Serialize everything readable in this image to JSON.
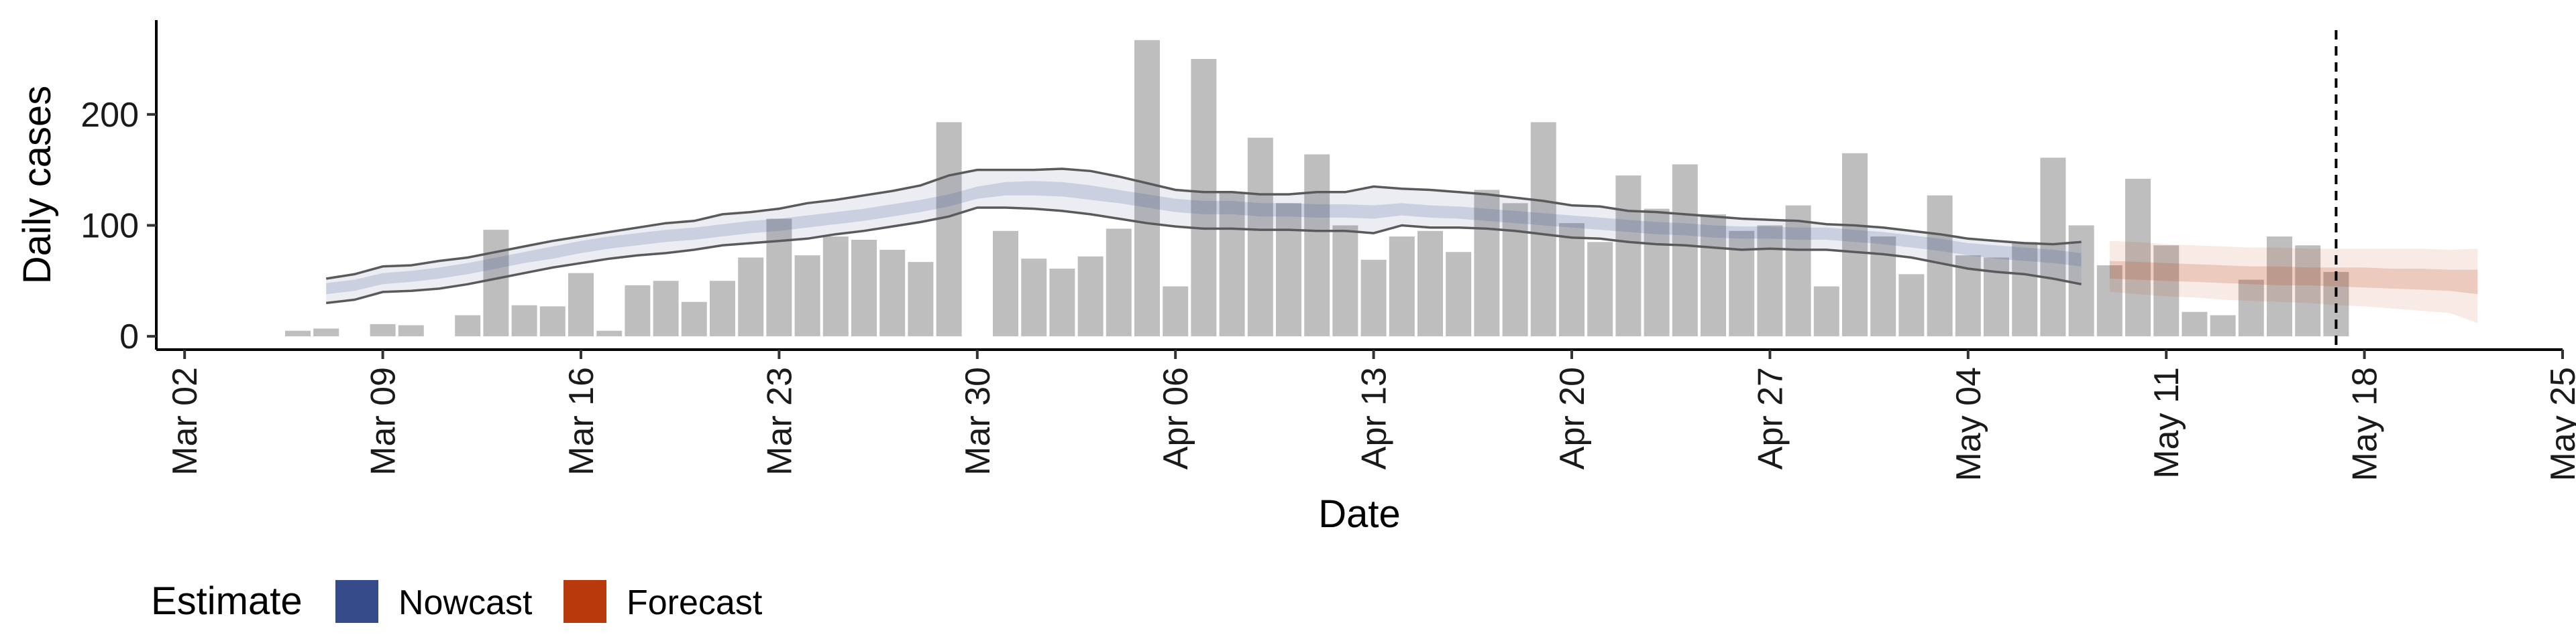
{
  "chart_data": {
    "type": "bar",
    "title": "",
    "xlabel": "Date",
    "ylabel": "Daily cases",
    "x_range": [
      "2020-03-01",
      "2020-05-25"
    ],
    "ylim": [
      -12,
      285
    ],
    "x_ticks": [
      {
        "date": "2020-03-02",
        "label": "Mar 02"
      },
      {
        "date": "2020-03-09",
        "label": "Mar 09"
      },
      {
        "date": "2020-03-16",
        "label": "Mar 16"
      },
      {
        "date": "2020-03-23",
        "label": "Mar 23"
      },
      {
        "date": "2020-03-30",
        "label": "Mar 30"
      },
      {
        "date": "2020-04-06",
        "label": "Apr 06"
      },
      {
        "date": "2020-04-13",
        "label": "Apr 13"
      },
      {
        "date": "2020-04-20",
        "label": "Apr 20"
      },
      {
        "date": "2020-04-27",
        "label": "Apr 27"
      },
      {
        "date": "2020-05-04",
        "label": "May 04"
      },
      {
        "date": "2020-05-11",
        "label": "May 11"
      },
      {
        "date": "2020-05-18",
        "label": "May 18"
      },
      {
        "date": "2020-05-25",
        "label": "May 25"
      }
    ],
    "y_ticks": [
      0,
      100,
      200
    ],
    "grid": false,
    "bar_color": "#bebebe",
    "bars": {
      "dates": [
        "2020-03-06",
        "2020-03-07",
        "2020-03-08",
        "2020-03-09",
        "2020-03-10",
        "2020-03-11",
        "2020-03-12",
        "2020-03-13",
        "2020-03-14",
        "2020-03-15",
        "2020-03-16",
        "2020-03-17",
        "2020-03-18",
        "2020-03-19",
        "2020-03-20",
        "2020-03-21",
        "2020-03-22",
        "2020-03-23",
        "2020-03-24",
        "2020-03-25",
        "2020-03-26",
        "2020-03-27",
        "2020-03-28",
        "2020-03-29",
        "2020-03-30",
        "2020-03-31",
        "2020-04-01",
        "2020-04-02",
        "2020-04-03",
        "2020-04-04",
        "2020-04-05",
        "2020-04-06",
        "2020-04-07",
        "2020-04-08",
        "2020-04-09",
        "2020-04-10",
        "2020-04-11",
        "2020-04-12",
        "2020-04-13",
        "2020-04-14",
        "2020-04-15",
        "2020-04-16",
        "2020-04-17",
        "2020-04-18",
        "2020-04-19",
        "2020-04-20",
        "2020-04-21",
        "2020-04-22",
        "2020-04-23",
        "2020-04-24",
        "2020-04-25",
        "2020-04-26",
        "2020-04-27",
        "2020-04-28",
        "2020-04-29",
        "2020-04-30",
        "2020-05-01",
        "2020-05-02",
        "2020-05-03",
        "2020-05-04",
        "2020-05-05",
        "2020-05-06",
        "2020-05-07",
        "2020-05-08",
        "2020-05-09",
        "2020-05-10",
        "2020-05-11",
        "2020-05-12",
        "2020-05-13",
        "2020-05-14",
        "2020-05-15",
        "2020-05-16",
        "2020-05-17"
      ],
      "values": [
        5,
        7,
        0,
        11,
        10,
        0,
        19,
        96,
        28,
        27,
        57,
        5,
        46,
        50,
        31,
        50,
        71,
        106,
        73,
        90,
        87,
        78,
        67,
        193,
        0,
        95,
        70,
        61,
        72,
        97,
        267,
        45,
        250,
        130,
        179,
        120,
        164,
        100,
        69,
        90,
        95,
        76,
        132,
        120,
        193,
        102,
        85,
        145,
        115,
        155,
        110,
        95,
        100,
        118,
        45,
        165,
        90,
        56,
        127,
        73,
        71,
        85,
        161,
        100,
        64,
        142,
        82,
        22,
        19,
        51,
        90,
        82,
        58
      ]
    },
    "series": [
      {
        "name": "Nowcast",
        "color": "#364b8a",
        "dates": [
          "2020-03-07",
          "2020-03-08",
          "2020-03-09",
          "2020-03-10",
          "2020-03-11",
          "2020-03-12",
          "2020-03-13",
          "2020-03-14",
          "2020-03-15",
          "2020-03-16",
          "2020-03-17",
          "2020-03-18",
          "2020-03-19",
          "2020-03-20",
          "2020-03-21",
          "2020-03-22",
          "2020-03-23",
          "2020-03-24",
          "2020-03-25",
          "2020-03-26",
          "2020-03-27",
          "2020-03-28",
          "2020-03-29",
          "2020-03-30",
          "2020-03-31",
          "2020-04-01",
          "2020-04-02",
          "2020-04-03",
          "2020-04-04",
          "2020-04-05",
          "2020-04-06",
          "2020-04-07",
          "2020-04-08",
          "2020-04-09",
          "2020-04-10",
          "2020-04-11",
          "2020-04-12",
          "2020-04-13",
          "2020-04-14",
          "2020-04-15",
          "2020-04-16",
          "2020-04-17",
          "2020-04-18",
          "2020-04-19",
          "2020-04-20",
          "2020-04-21",
          "2020-04-22",
          "2020-04-23",
          "2020-04-24",
          "2020-04-25",
          "2020-04-26",
          "2020-04-27",
          "2020-04-28",
          "2020-04-29",
          "2020-04-30",
          "2020-05-01",
          "2020-05-02",
          "2020-05-03",
          "2020-05-04",
          "2020-05-05",
          "2020-05-06",
          "2020-05-07",
          "2020-05-08"
        ],
        "lower": [
          30,
          33,
          40,
          41,
          43,
          47,
          52,
          57,
          62,
          66,
          70,
          73,
          75,
          78,
          82,
          84,
          86,
          88,
          92,
          95,
          99,
          103,
          108,
          116,
          116,
          115,
          113,
          110,
          106,
          102,
          99,
          97,
          97,
          96,
          96,
          95,
          95,
          93,
          100,
          98,
          98,
          97,
          95,
          92,
          89,
          88,
          85,
          83,
          82,
          80,
          78,
          79,
          78,
          78,
          76,
          74,
          71,
          66,
          61,
          58,
          56,
          52,
          47
        ],
        "inner_lower": [
          38,
          41,
          47,
          49,
          52,
          56,
          61,
          66,
          70,
          75,
          79,
          82,
          85,
          87,
          90,
          93,
          95,
          98,
          101,
          104,
          108,
          112,
          117,
          124,
          127,
          127,
          126,
          123,
          120,
          116,
          112,
          110,
          110,
          108,
          108,
          107,
          107,
          106,
          109,
          107,
          106,
          104,
          102,
          100,
          98,
          96,
          94,
          92,
          91,
          89,
          88,
          88,
          87,
          87,
          85,
          83,
          80,
          77,
          73,
          70,
          68,
          66,
          63
        ],
        "median": [
          43,
          46,
          52,
          54,
          57,
          61,
          66,
          71,
          75,
          80,
          84,
          87,
          90,
          92,
          95,
          98,
          100,
          103,
          106,
          109,
          113,
          117,
          122,
          129,
          133,
          133,
          132,
          129,
          126,
          122,
          118,
          116,
          116,
          114,
          114,
          113,
          113,
          112,
          114,
          112,
          111,
          109,
          107,
          105,
          103,
          101,
          99,
          97,
          96,
          94,
          93,
          93,
          92,
          92,
          90,
          88,
          85,
          82,
          78,
          75,
          73,
          71,
          69
        ],
        "inner_upper": [
          48,
          51,
          57,
          59,
          62,
          66,
          71,
          76,
          81,
          86,
          90,
          93,
          96,
          98,
          101,
          104,
          106,
          109,
          112,
          115,
          119,
          123,
          128,
          135,
          139,
          140,
          139,
          136,
          132,
          128,
          124,
          122,
          122,
          120,
          120,
          119,
          119,
          118,
          120,
          118,
          117,
          115,
          113,
          111,
          109,
          107,
          105,
          103,
          102,
          100,
          99,
          99,
          98,
          98,
          96,
          94,
          91,
          88,
          84,
          82,
          80,
          78,
          75
        ],
        "upper": [
          52,
          56,
          63,
          64,
          68,
          71,
          76,
          81,
          86,
          90,
          94,
          98,
          102,
          104,
          110,
          112,
          115,
          120,
          123,
          127,
          131,
          136,
          145,
          150,
          150,
          150,
          151,
          149,
          144,
          138,
          132,
          130,
          130,
          128,
          128,
          130,
          130,
          135,
          133,
          132,
          130,
          128,
          125,
          122,
          118,
          117,
          113,
          112,
          110,
          108,
          106,
          105,
          104,
          101,
          100,
          98,
          95,
          92,
          88,
          86,
          84,
          83,
          85
        ]
      },
      {
        "name": "Forecast",
        "color": "#b83a0c",
        "dates": [
          "2020-05-09",
          "2020-05-10",
          "2020-05-11",
          "2020-05-12",
          "2020-05-13",
          "2020-05-14",
          "2020-05-15",
          "2020-05-16",
          "2020-05-17",
          "2020-05-18",
          "2020-05-19",
          "2020-05-20",
          "2020-05-21",
          "2020-05-22"
        ],
        "lower": [
          40,
          38,
          36,
          35,
          33,
          32,
          31,
          30,
          28,
          27,
          25,
          23,
          21,
          12
        ],
        "inner_lower": [
          52,
          51,
          50,
          49,
          48,
          47,
          46,
          46,
          45,
          44,
          43,
          42,
          41,
          38
        ],
        "median": [
          60,
          59,
          58,
          57,
          56,
          55,
          55,
          54,
          54,
          53,
          53,
          52,
          51,
          50
        ],
        "inner_upper": [
          68,
          67,
          66,
          65,
          64,
          63,
          63,
          62,
          62,
          62,
          61,
          61,
          60,
          60
        ],
        "upper": [
          86,
          85,
          83,
          82,
          81,
          80,
          80,
          79,
          79,
          79,
          79,
          79,
          78,
          79
        ]
      }
    ],
    "vline": {
      "date": "2020-05-17",
      "style": "dashed"
    },
    "legend": {
      "title": "Estimate",
      "position": "bottom-left",
      "items": [
        {
          "label": "Nowcast",
          "color": "#364b8a"
        },
        {
          "label": "Forecast",
          "color": "#b83a0c"
        }
      ]
    }
  }
}
